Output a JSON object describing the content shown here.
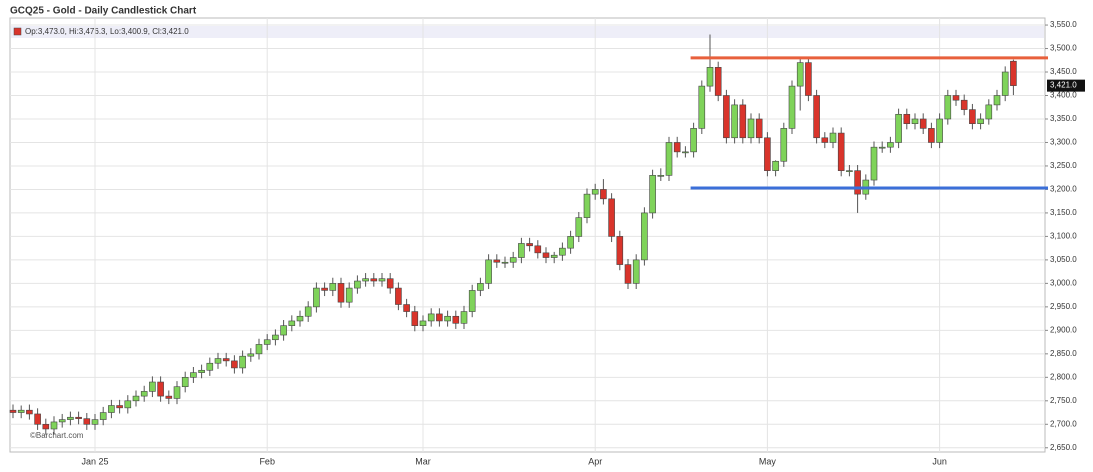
{
  "chart_data": {
    "type": "candlestick",
    "title": "GCQ25 - Gold - Daily Candlestick Chart",
    "info": "Op:3,473.0, Hi:3,476.3, Lo:3,400.9, Cl:3,421.0",
    "watermark": "©Barchart.com",
    "up_color": "#7fd35a",
    "down_color": "#d9342b",
    "grid": true,
    "categories": [
      null,
      null,
      null,
      null,
      null,
      null,
      null,
      null,
      null,
      null,
      "Jan 25",
      null,
      null,
      null,
      null,
      null,
      null,
      null,
      null,
      null,
      null,
      null,
      null,
      null,
      null,
      null,
      null,
      null,
      null,
      null,
      null,
      "Feb",
      null,
      null,
      null,
      null,
      null,
      null,
      null,
      null,
      null,
      null,
      null,
      null,
      null,
      null,
      null,
      null,
      null,
      null,
      "Mar",
      null,
      null,
      null,
      null,
      null,
      null,
      null,
      null,
      null,
      null,
      null,
      null,
      null,
      null,
      null,
      null,
      null,
      null,
      null,
      null,
      "Apr",
      null,
      null,
      null,
      null,
      null,
      null,
      null,
      null,
      null,
      null,
      null,
      null,
      null,
      null,
      null,
      null,
      null,
      null,
      null,
      null,
      "May",
      null,
      null,
      null,
      null,
      null,
      null,
      null,
      null,
      null,
      null,
      null,
      null,
      null,
      null,
      null,
      null,
      null,
      null,
      null,
      null,
      "Jun",
      null,
      null,
      null,
      null,
      null,
      null,
      null,
      null,
      null
    ],
    "open": [
      2730,
      2725,
      2730,
      2722,
      2700,
      2690,
      2705,
      2710,
      2715,
      2712,
      2700,
      2710,
      2725,
      2740,
      2735,
      2750,
      2760,
      2770,
      2790,
      2760,
      2755,
      2780,
      2800,
      2810,
      2815,
      2830,
      2840,
      2835,
      2820,
      2845,
      2850,
      2870,
      2880,
      2890,
      2910,
      2920,
      2930,
      2950,
      2990,
      2985,
      3000,
      2960,
      2990,
      3005,
      3010,
      3005,
      3010,
      2990,
      2955,
      2940,
      2910,
      2920,
      2935,
      2920,
      2930,
      2915,
      2940,
      2985,
      3000,
      3050,
      3045,
      3045,
      3055,
      3085,
      3080,
      3065,
      3055,
      3060,
      3075,
      3100,
      3140,
      3190,
      3200,
      3180,
      3100,
      3040,
      3000,
      3050,
      3150,
      3230,
      3230,
      3300,
      3280,
      3280,
      3330,
      3420,
      3460,
      3400,
      3310,
      3380,
      3310,
      3350,
      3310,
      3240,
      3260,
      3330,
      3420,
      3470,
      3400,
      3310,
      3300,
      3320,
      3240,
      3240,
      3190,
      3220,
      3290,
      3290,
      3300,
      3360,
      3340,
      3350,
      3330,
      3300,
      3350,
      3400,
      3390,
      3370,
      3340,
      3350,
      3380,
      3400,
      3473
    ],
    "high": [
      2742,
      2740,
      2742,
      2734,
      2712,
      2717,
      2722,
      2727,
      2727,
      2724,
      2722,
      2737,
      2752,
      2752,
      2762,
      2772,
      2782,
      2802,
      2802,
      2772,
      2792,
      2812,
      2822,
      2827,
      2842,
      2852,
      2852,
      2847,
      2857,
      2862,
      2882,
      2892,
      2902,
      2922,
      2932,
      2942,
      2962,
      3002,
      3002,
      3012,
      3012,
      3002,
      3017,
      3022,
      3022,
      3022,
      3022,
      3002,
      2967,
      2952,
      2932,
      2947,
      2947,
      2942,
      2942,
      2952,
      2997,
      3012,
      3062,
      3062,
      3057,
      3067,
      3097,
      3097,
      3092,
      3077,
      3067,
      3087,
      3112,
      3152,
      3202,
      3212,
      3222,
      3192,
      3112,
      3052,
      3062,
      3162,
      3242,
      3245,
      3312,
      3312,
      3292,
      3342,
      3432,
      3530,
      3472,
      3412,
      3392,
      3392,
      3362,
      3362,
      3322,
      3262,
      3342,
      3432,
      3482,
      3482,
      3412,
      3322,
      3332,
      3332,
      3252,
      3252,
      3232,
      3302,
      3302,
      3312,
      3372,
      3372,
      3362,
      3362,
      3342,
      3362,
      3412,
      3412,
      3402,
      3382,
      3362,
      3392,
      3412,
      3462,
      3476.3
    ],
    "low": [
      2713,
      2713,
      2710,
      2688,
      2678,
      2678,
      2693,
      2698,
      2700,
      2688,
      2688,
      2698,
      2713,
      2723,
      2723,
      2738,
      2748,
      2758,
      2748,
      2743,
      2743,
      2768,
      2788,
      2798,
      2803,
      2818,
      2823,
      2808,
      2808,
      2833,
      2838,
      2858,
      2868,
      2878,
      2898,
      2908,
      2918,
      2938,
      2973,
      2973,
      2948,
      2948,
      2978,
      2993,
      2993,
      2993,
      2978,
      2943,
      2928,
      2898,
      2898,
      2908,
      2908,
      2908,
      2903,
      2903,
      2928,
      2973,
      2988,
      3033,
      3033,
      3033,
      3043,
      3068,
      3053,
      3043,
      3043,
      3048,
      3063,
      3088,
      3128,
      3178,
      3168,
      3088,
      3028,
      2988,
      2988,
      3038,
      3138,
      3218,
      3218,
      3268,
      3268,
      3268,
      3318,
      3408,
      3388,
      3298,
      3298,
      3298,
      3298,
      3298,
      3228,
      3228,
      3248,
      3318,
      3368,
      3388,
      3298,
      3288,
      3288,
      3228,
      3228,
      3150,
      3178,
      3208,
      3278,
      3278,
      3288,
      3328,
      3328,
      3318,
      3288,
      3288,
      3338,
      3378,
      3358,
      3328,
      3328,
      3338,
      3368,
      3388,
      3400.9
    ],
    "close": [
      2725,
      2730,
      2722,
      2700,
      2690,
      2705,
      2710,
      2715,
      2712,
      2700,
      2710,
      2725,
      2740,
      2735,
      2750,
      2760,
      2770,
      2790,
      2760,
      2755,
      2780,
      2800,
      2810,
      2815,
      2830,
      2840,
      2835,
      2820,
      2845,
      2850,
      2870,
      2880,
      2890,
      2910,
      2920,
      2930,
      2950,
      2990,
      2985,
      3000,
      2960,
      2990,
      3005,
      3010,
      3005,
      3010,
      2990,
      2955,
      2940,
      2910,
      2920,
      2935,
      2920,
      2930,
      2915,
      2940,
      2985,
      3000,
      3050,
      3045,
      3045,
      3055,
      3085,
      3080,
      3065,
      3055,
      3060,
      3075,
      3100,
      3140,
      3190,
      3200,
      3180,
      3100,
      3040,
      3000,
      3050,
      3150,
      3230,
      3230,
      3300,
      3280,
      3280,
      3330,
      3420,
      3460,
      3400,
      3310,
      3380,
      3310,
      3350,
      3310,
      3240,
      3260,
      3330,
      3420,
      3470,
      3400,
      3310,
      3300,
      3320,
      3240,
      3240,
      3190,
      3220,
      3290,
      3290,
      3300,
      3360,
      3340,
      3350,
      3330,
      3300,
      3350,
      3400,
      3390,
      3370,
      3340,
      3350,
      3380,
      3400,
      3450,
      3421
    ],
    "last_value_label": "3,421.0",
    "lines": [
      {
        "value": 3480,
        "color": "#e8603c",
        "start": 83
      },
      {
        "value": 3203,
        "color": "#3b6fd8",
        "start": 83
      }
    ],
    "ylim": [
      2641,
      3565
    ],
    "yticks": [
      {
        "value": 2650,
        "label": "2,650.0"
      },
      {
        "value": 2700,
        "label": "2,700.0"
      },
      {
        "value": 2750,
        "label": "2,750.0"
      },
      {
        "value": 2800,
        "label": "2,800.0"
      },
      {
        "value": 2850,
        "label": "2,850.0"
      },
      {
        "value": 2900,
        "label": "2,900.0"
      },
      {
        "value": 2950,
        "label": "2,950.0"
      },
      {
        "value": 3000,
        "label": "3,000.0"
      },
      {
        "value": 3050,
        "label": "3,050.0"
      },
      {
        "value": 3100,
        "label": "3,100.0"
      },
      {
        "value": 3150,
        "label": "3,150.0"
      },
      {
        "value": 3200,
        "label": "3,200.0"
      },
      {
        "value": 3250,
        "label": "3,250.0"
      },
      {
        "value": 3300,
        "label": "3,300.0"
      },
      {
        "value": 3350,
        "label": "3,350.0"
      },
      {
        "value": 3400,
        "label": "3,400.0"
      },
      {
        "value": 3450,
        "label": "3,450.0"
      },
      {
        "value": 3500,
        "label": "3,500.0"
      },
      {
        "value": 3550,
        "label": "3,550.0"
      }
    ]
  }
}
